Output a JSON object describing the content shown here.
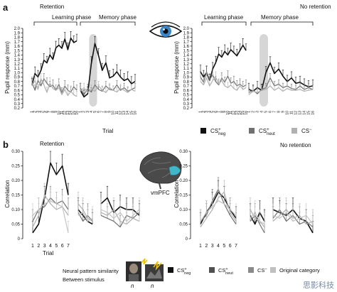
{
  "labels": {
    "panel_a": "a",
    "panel_b": "b",
    "retention": "Retention",
    "no_retention": "No retention",
    "learning_phase": "Learning phase",
    "memory_phase": "Memory phase",
    "ylabel_a": "Pupil response (mm)",
    "ylabel_b": "Correlation",
    "trial": "Trial",
    "vmpfc": "vmPFC",
    "neural_pattern": "Neural pattern similarity",
    "between_stimulus": "Between stimulus",
    "n1": "n",
    "n2": "n",
    "original_category": "Original category"
  },
  "watermark": "思影科技",
  "legend_a": [
    {
      "base": "CS",
      "sup": "+",
      "sub": "neg",
      "color": "#111111"
    },
    {
      "base": "CS",
      "sup": "+",
      "sub": "neut",
      "color": "#707070"
    },
    {
      "base": "CS",
      "sup": "−",
      "sub": "",
      "color": "#b0b0b0"
    }
  ],
  "legend_b": [
    {
      "base": "CS",
      "sup": "+",
      "sub": "neg",
      "color": "#111111"
    },
    {
      "base": "CS",
      "sup": "+",
      "sub": "neut",
      "color": "#505050"
    },
    {
      "base": "CS",
      "sup": "−",
      "sub": "",
      "color": "#8a8a8a"
    },
    {
      "base": "Original category",
      "sup": "",
      "sub": "",
      "color": "#c0c0c0"
    }
  ],
  "colors": {
    "neg": "#111111",
    "neut": "#707070",
    "minus": "#b0b0b0",
    "orig": "#c4c4c4",
    "brain_accent": "#3fb6c9",
    "eye_iris": "#3a86c8"
  },
  "chart_data": [
    {
      "id": "a-retention",
      "type": "line",
      "yticks": [
        "0.2",
        "0.3",
        "0.4",
        "0.5",
        "0.6",
        "0.7",
        "0.8",
        "0.9",
        "1.0",
        "1.1",
        "1.2",
        "1.3",
        "1.4",
        "1.5",
        "1.6",
        "1.7",
        "1.8",
        "1.9",
        "2.0"
      ],
      "ylim": [
        0.2,
        2.0
      ],
      "xlabel": "Trial",
      "learning_ticks": [
        "1",
        "2",
        "3",
        "4",
        "5",
        "6",
        "7",
        "8",
        "9",
        "10",
        "11",
        "12",
        "13",
        "14",
        "15",
        "16"
      ],
      "memory_ticks": [
        "1",
        "2",
        "3",
        "4",
        "5",
        "6",
        "7",
        "8",
        "9",
        "10",
        "11",
        "12",
        "13",
        "14",
        "15",
        "16"
      ],
      "highlight_memory_trial": [
        4,
        5
      ],
      "learning_series": [
        {
          "name": "neg",
          "values": [
            0.72,
            0.98,
            0.9,
            1.05,
            1.28,
            1.22,
            1.4,
            1.3,
            1.56,
            1.62,
            1.55,
            1.76,
            1.52,
            1.78,
            1.68,
            1.72
          ],
          "err": 0.15
        },
        {
          "name": "neut",
          "values": [
            0.78,
            0.6,
            0.82,
            0.7,
            0.86,
            0.76,
            0.68,
            0.72,
            0.6,
            0.74,
            0.54,
            0.7,
            0.6,
            0.56,
            0.68,
            0.6
          ],
          "err": 0.12
        },
        {
          "name": "minus",
          "values": [
            0.7,
            0.82,
            0.62,
            0.86,
            0.72,
            0.55,
            0.76,
            0.64,
            0.6,
            0.66,
            0.5,
            0.62,
            0.48,
            0.58,
            0.5,
            0.46
          ],
          "err": 0.12
        }
      ],
      "memory_series": [
        {
          "name": "neg",
          "values": [
            0.6,
            0.45,
            0.52,
            1.2,
            1.66,
            1.38,
            1.05,
            1.22,
            0.88,
            0.92,
            1.02,
            0.9,
            0.82,
            0.86,
            0.75,
            0.8
          ],
          "err": 0.16
        },
        {
          "name": "neut",
          "values": [
            0.66,
            0.5,
            0.64,
            0.56,
            0.72,
            0.62,
            0.58,
            0.7,
            0.62,
            0.6,
            0.72,
            0.6,
            0.66,
            0.58,
            0.62,
            0.66
          ],
          "err": 0.1
        },
        {
          "name": "minus",
          "values": [
            0.58,
            0.66,
            0.55,
            0.62,
            0.58,
            0.7,
            0.6,
            0.55,
            0.66,
            0.6,
            0.56,
            0.64,
            0.6,
            0.55,
            0.62,
            0.58
          ],
          "err": 0.1
        }
      ]
    },
    {
      "id": "a-noretention",
      "type": "line",
      "yticks": [
        "0.2",
        "0.3",
        "0.4",
        "0.5",
        "0.6",
        "0.7",
        "0.8",
        "0.9",
        "1.0",
        "1.1",
        "1.2",
        "1.3",
        "1.4",
        "1.5",
        "1.6",
        "1.7",
        "1.8",
        "1.9",
        "2.0"
      ],
      "ylim": [
        0.2,
        2.0
      ],
      "xlabel": "Trial",
      "learning_ticks": [
        "1",
        "2",
        "3",
        "4",
        "5",
        "6",
        "7",
        "8",
        "9",
        "10",
        "11",
        "12",
        "13",
        "14",
        "15",
        "16"
      ],
      "memory_ticks": [
        "1",
        "2",
        "3",
        "4",
        "5",
        "6",
        "7",
        "8",
        "9",
        "10",
        "11",
        "12",
        "13",
        "14",
        "15",
        "16"
      ],
      "highlight_memory_trial": [
        4,
        5
      ],
      "learning_series": [
        {
          "name": "neg",
          "values": [
            1.02,
            0.9,
            1.0,
            0.82,
            1.08,
            1.22,
            1.42,
            1.35,
            1.48,
            1.4,
            1.52,
            1.45,
            1.38,
            1.5,
            1.62,
            1.5
          ],
          "err": 0.15
        },
        {
          "name": "neut",
          "values": [
            0.9,
            0.78,
            1.02,
            0.84,
            0.95,
            0.8,
            0.72,
            0.88,
            0.78,
            0.92,
            0.76,
            0.8,
            0.7,
            0.74,
            0.68,
            0.72
          ],
          "err": 0.12
        },
        {
          "name": "minus",
          "values": [
            0.8,
            0.72,
            0.88,
            0.7,
            0.82,
            0.9,
            0.74,
            0.82,
            0.7,
            0.66,
            0.72,
            0.64,
            0.6,
            0.7,
            0.62,
            0.66
          ],
          "err": 0.12
        }
      ],
      "memory_series": [
        {
          "name": "neg",
          "values": [
            0.62,
            0.58,
            0.66,
            0.6,
            1.0,
            1.22,
            0.98,
            1.08,
            0.92,
            0.8,
            0.88,
            0.76,
            0.78,
            0.72,
            0.68,
            0.7
          ],
          "err": 0.14
        },
        {
          "name": "neut",
          "values": [
            0.55,
            0.6,
            0.52,
            0.62,
            0.66,
            0.88,
            0.7,
            0.74,
            0.66,
            0.7,
            0.64,
            0.62,
            0.7,
            0.62,
            0.66,
            0.62
          ],
          "err": 0.1
        },
        {
          "name": "minus",
          "values": [
            0.5,
            0.58,
            0.55,
            0.6,
            0.62,
            0.7,
            0.6,
            0.66,
            0.58,
            0.64,
            0.6,
            0.6,
            0.62,
            0.58,
            0.6,
            0.62
          ],
          "err": 0.1
        }
      ]
    },
    {
      "id": "b-retention",
      "type": "line",
      "yticks": [
        "0",
        "0.05",
        "0.10",
        "0.15",
        "0.20",
        "0.25",
        "0.30"
      ],
      "ylim": [
        0,
        0.3
      ],
      "xlabel": "Trial",
      "group_ticks": [
        "1",
        "2",
        "3",
        "4",
        "5",
        "6",
        "7"
      ],
      "groups": [
        [
          {
            "name": "neg",
            "values": [
              0.02,
              0.05,
              0.14,
              0.26,
              0.22,
              0.25,
              0.15
            ],
            "err": 0.04
          },
          {
            "name": "neut",
            "values": [
              0.06,
              0.1,
              0.11,
              0.14,
              0.12,
              0.13,
              0.1
            ],
            "err": 0.04
          },
          {
            "name": "minus",
            "values": [
              0.04,
              0.08,
              0.15,
              0.12,
              0.1,
              0.11,
              0.08
            ],
            "err": 0.04
          },
          {
            "name": "orig",
            "values": [
              0.08,
              0.1,
              0.12,
              0.13,
              0.12,
              0.11,
              0.02
            ],
            "err": 0.04
          }
        ],
        [
          {
            "name": "neg",
            "values": [
              0.1,
              0.08,
              0.06,
              0.05
            ],
            "err": 0.04
          },
          {
            "name": "neut",
            "values": [
              0.09,
              0.06,
              0.08,
              0.06
            ],
            "err": 0.04
          },
          {
            "name": "minus",
            "values": [
              0.12,
              0.1,
              0.07,
              0.06
            ],
            "err": 0.04
          },
          {
            "name": "orig",
            "values": [
              0.08,
              0.09,
              0.06,
              0.07
            ],
            "err": 0.04
          }
        ],
        [
          {
            "name": "neg",
            "values": [
              0.12,
              0.14,
              0.09,
              0.11,
              0.1,
              0.1,
              0.08
            ],
            "err": 0.04
          },
          {
            "name": "neut",
            "values": [
              0.08,
              0.07,
              0.06,
              0.04,
              0.08,
              0.07,
              0.09
            ],
            "err": 0.04
          },
          {
            "name": "minus",
            "values": [
              0.09,
              0.08,
              0.1,
              0.06,
              0.05,
              0.07,
              0.06
            ],
            "err": 0.04
          },
          {
            "name": "orig",
            "values": [
              0.1,
              0.09,
              0.07,
              0.09,
              0.06,
              0.08,
              0.1
            ],
            "err": 0.04
          }
        ]
      ]
    },
    {
      "id": "b-noretention",
      "type": "line",
      "yticks": [
        "0",
        "0.05",
        "0.10",
        "0.15",
        "0.20",
        "0.25",
        "0.30"
      ],
      "ylim": [
        0,
        0.3
      ],
      "xlabel": "",
      "group_ticks": [
        "1",
        "2",
        "3",
        "4",
        "5",
        "6",
        "7"
      ],
      "groups": [
        [
          {
            "name": "neg",
            "values": [
              0.05,
              0.09,
              0.12,
              0.16,
              0.14,
              0.1,
              0.07
            ],
            "err": 0.04
          },
          {
            "name": "neut",
            "values": [
              0.06,
              0.08,
              0.13,
              0.17,
              0.12,
              0.08,
              0.05
            ],
            "err": 0.04
          },
          {
            "name": "minus",
            "values": [
              0.04,
              0.07,
              0.1,
              0.14,
              0.16,
              0.09,
              0.06
            ],
            "err": 0.04
          },
          {
            "name": "orig",
            "values": [
              0.06,
              0.09,
              0.11,
              0.13,
              0.12,
              0.1,
              0.08
            ],
            "err": 0.04
          }
        ],
        [
          {
            "name": "neg",
            "values": [
              0.08,
              0.05,
              0.09,
              0.06
            ],
            "err": 0.04
          },
          {
            "name": "neut",
            "values": [
              0.06,
              0.08,
              0.05,
              0.02
            ],
            "err": 0.04
          },
          {
            "name": "minus",
            "values": [
              0.1,
              0.07,
              0.06,
              0.04
            ],
            "err": 0.04
          },
          {
            "name": "orig",
            "values": [
              0.07,
              0.09,
              0.06,
              0.05
            ],
            "err": 0.04
          }
        ],
        [
          {
            "name": "neg",
            "values": [
              0.1,
              0.09,
              0.08,
              0.1,
              0.07,
              0.06,
              0.02
            ],
            "err": 0.04
          },
          {
            "name": "neut",
            "values": [
              0.07,
              0.1,
              0.06,
              0.08,
              0.05,
              0.06,
              0.04
            ],
            "err": 0.04
          },
          {
            "name": "minus",
            "values": [
              0.06,
              0.08,
              0.1,
              0.07,
              0.08,
              0.05,
              0.06
            ],
            "err": 0.04
          },
          {
            "name": "orig",
            "values": [
              0.08,
              0.07,
              0.09,
              0.06,
              0.07,
              0.08,
              0.05
            ],
            "err": 0.04
          }
        ]
      ]
    }
  ]
}
